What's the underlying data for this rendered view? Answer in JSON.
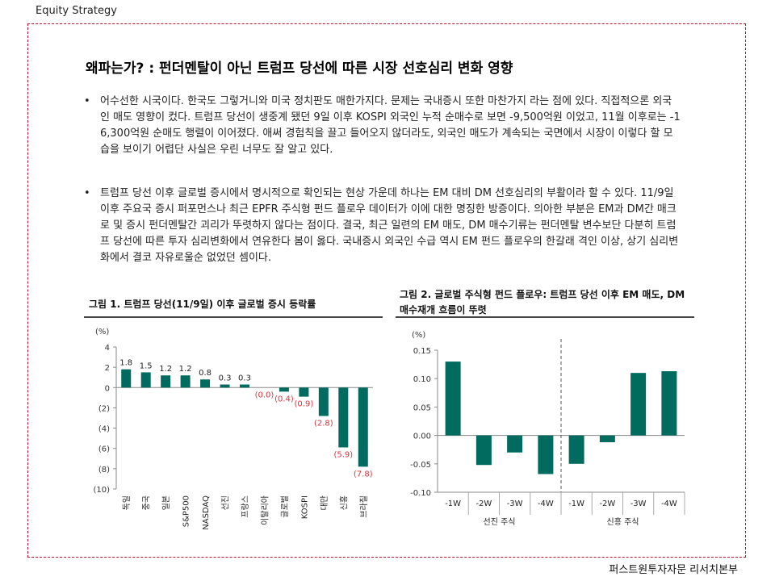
{
  "header": {
    "label": "Equity Strategy"
  },
  "title": "왜파는가? : 펀더멘탈이 아닌 트럼프 당선에 따른 시장 선호심리 변화 영향",
  "bullets": [
    {
      "symbol": "•",
      "text": "어수선한 시국이다. 한국도 그렇거니와 미국 정치판도 매한가지다. 문제는 국내증시 또한 마찬가지 라는 점에 있다. 직접적으론 외국인 매도 영향이 컸다. 트럼프 당선이 생중계 됐던 9일 이후 KOSPI 외국인 누적 순매수로 보면 -9,500억원 이었고, 11월 이후로는 -16,300억원 순매도 행렬이 이어졌다. 애써 경험칙을 끌고 들어오지 않더라도, 외국인 매도가 계속되는 국면에서 시장이 이렇다 할 모습을 보이기 어렵단 사실은 우린 너무도 잘 알고 있다."
    },
    {
      "symbol": "•",
      "text": "트럼프 당선 이후 글로벌 증시에서 명시적으로 확인되는 현상 가운데 하나는 EM 대비 DM 선호심리의 부활이라 할 수 있다. 11/9일 이후 주요국 증시 퍼포먼스나 최근 EPFR 주식형 펀드 플로우 데이터가 이에 대한 명징한 방증이다. 의아한 부분은 EM과 DM간 매크로 및 증시 펀더멘탈간 괴리가 뚜렷하지 않다는 점이다. 결국, 최근 일련의 EM 매도, DM 매수기류는 펀더멘탈 변수보단 다분히 트럼프 당선에 따른 투자 심리변화에서 연유한다 봄이 옳다. 국내증시 외국인 수급 역시 EM 펀드 플로우의 한갈래 격인 이상, 상기 심리변화에서 결코 자유로울순 없었던 셈이다."
    }
  ],
  "chart_data": [
    {
      "type": "bar",
      "title": "그림 1. 트럼프 당선(11/9일) 이후 글로벌 증시 등락률",
      "unit": "(%)",
      "categories": [
        "독일",
        "중국",
        "일본",
        "S&P500",
        "NASDAQ",
        "선진",
        "프랑스",
        "이탈리아",
        "글로벌",
        "KOSPI",
        "대만",
        "신흥",
        "브라질"
      ],
      "values": [
        1.8,
        1.5,
        1.2,
        1.2,
        0.8,
        0.3,
        0.3,
        0.0,
        -0.4,
        -0.9,
        -2.8,
        -5.9,
        -7.8
      ],
      "value_labels": [
        "1.8",
        "1.5",
        "1.2",
        "1.2",
        "0.8",
        "0.3",
        "0.3",
        "(0.0)",
        "(0.4)",
        "(0.9)",
        "(2.8)",
        "(5.9)",
        "(7.8)"
      ],
      "yticks": [
        4,
        2,
        0,
        -2,
        -4,
        -6,
        -8,
        -10
      ],
      "ytick_labels": [
        "4",
        "2",
        "0",
        "(2)",
        "(4)",
        "(6)",
        "(8)",
        "(10)"
      ],
      "ylim": [
        -10,
        4
      ],
      "colors": {
        "bar": "#006b5e",
        "negative_label": "#e0303a",
        "positive_label": "#222222"
      }
    },
    {
      "type": "bar",
      "title": "그림 2. 글로벌 주식형 펀드 플로우: 트럼프 당선 이후 EM 매도, DM 매수재개 흐름이 뚜렷",
      "unit": "(%)",
      "groups": [
        {
          "name": "선진 주식",
          "categories": [
            "-1W",
            "-2W",
            "-3W",
            "-4W"
          ],
          "values": [
            0.13,
            -0.052,
            -0.03,
            -0.068
          ]
        },
        {
          "name": "신흥 주식",
          "categories": [
            "-1W",
            "-2W",
            "-3W",
            "-4W"
          ],
          "values": [
            -0.05,
            -0.012,
            0.11,
            0.113
          ]
        }
      ],
      "yticks": [
        0.15,
        0.1,
        0.05,
        0.0,
        -0.05,
        -0.1
      ],
      "ytick_labels": [
        "0.15",
        "0.10",
        "0.05",
        "0.00",
        "-0.05",
        "-0.10"
      ],
      "ylim": [
        -0.1,
        0.15
      ],
      "colors": {
        "bar": "#006b5e"
      }
    }
  ],
  "footer": {
    "source": "퍼스트원투자자문 리서치본부"
  }
}
